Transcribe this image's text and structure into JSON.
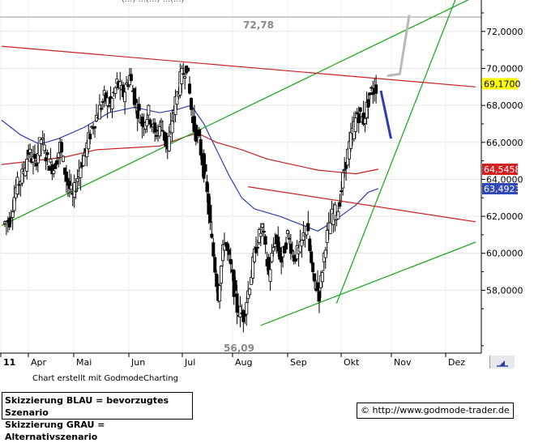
{
  "header": {
    "cut_text": "(...) ...(...) ...(...)"
  },
  "footer": {
    "credit": "Chart erstellt mit GodmodeCharting"
  },
  "legend_box": {
    "line1": "Skizzierung BLAU = bevorzugtes Szenario",
    "line2": "Skizzierung GRAU = Alternativszenario"
  },
  "url_box": {
    "icon": "copyright-icon",
    "text": "http://www.godmode-trader.de"
  },
  "chart_data": {
    "type": "candlestick",
    "title": "",
    "xlabel": "",
    "ylabel": "",
    "x_ticks": [
      "11",
      "Apr",
      "Mai",
      "Jun",
      "Jul",
      "Aug",
      "Sep",
      "Okt",
      "Nov",
      "Dez"
    ],
    "y_ticks": [
      "58,0000",
      "60,0000",
      "62,0000",
      "64,0000",
      "66,0000",
      "68,0000",
      "70,0000",
      "72,0000"
    ],
    "ylim": [
      54.6,
      73.7
    ],
    "grid": true,
    "annotations": {
      "high": "72,78",
      "low": "56,09"
    },
    "price_tags": [
      {
        "value": 69.17,
        "label": "69,1700",
        "bg": "#ffff00",
        "fg": "#000000"
      },
      {
        "value": 64.5458,
        "label": "64,5458",
        "bg": "#d42020",
        "fg": "#ffffff"
      },
      {
        "value": 63.4923,
        "label": "63,4923",
        "bg": "#3048b8",
        "fg": "#ffffff"
      }
    ],
    "colors": {
      "ma_red": "#c81e1e",
      "ma_blue": "#2a3eb0",
      "trend_green": "#22aa22",
      "resist_red": "#cc2222",
      "scenario_blue": "#2a3eb0",
      "scenario_grey": "#b8b8b8"
    },
    "ohlc_path": [
      [
        0.5,
        61.6
      ],
      [
        1.5,
        61.8
      ],
      [
        2.5,
        63.5
      ],
      [
        3.5,
        64.2
      ],
      [
        4.5,
        65.5
      ],
      [
        5.5,
        64.8
      ],
      [
        6.5,
        66.2
      ],
      [
        7.5,
        65.0
      ],
      [
        8.5,
        64.6
      ],
      [
        9.5,
        65.8
      ],
      [
        10.5,
        64.0
      ],
      [
        11.5,
        63.0
      ],
      [
        12.5,
        64.5
      ],
      [
        13.5,
        65.5
      ],
      [
        14.5,
        66.8
      ],
      [
        15.5,
        67.6
      ],
      [
        16.5,
        68.4
      ],
      [
        17.5,
        68.0
      ],
      [
        18.5,
        69.2
      ],
      [
        19.5,
        68.6
      ],
      [
        20.5,
        69.6
      ],
      [
        21.5,
        68.0
      ],
      [
        22.5,
        67.0
      ],
      [
        23.5,
        67.6
      ],
      [
        24.5,
        66.4
      ],
      [
        25.5,
        67.0
      ],
      [
        26.5,
        65.6
      ],
      [
        27.5,
        67.8
      ],
      [
        28.5,
        69.4
      ],
      [
        29.5,
        70.2
      ],
      [
        30.5,
        67.0
      ],
      [
        31.5,
        66.0
      ],
      [
        32.5,
        64.0
      ],
      [
        33.5,
        60.6
      ],
      [
        34.5,
        57.8
      ],
      [
        35.5,
        60.8
      ],
      [
        36.5,
        59.2
      ],
      [
        37.5,
        57.0
      ],
      [
        38.5,
        56.6
      ],
      [
        39.5,
        58.4
      ],
      [
        40.5,
        60.4
      ],
      [
        41.5,
        61.4
      ],
      [
        42.5,
        58.8
      ],
      [
        43.5,
        60.8
      ],
      [
        44.5,
        59.6
      ],
      [
        45.5,
        61.0
      ],
      [
        46.5,
        59.8
      ],
      [
        47.5,
        60.2
      ],
      [
        48.5,
        61.6
      ],
      [
        49.5,
        58.6
      ],
      [
        50.5,
        57.8
      ],
      [
        51.5,
        60.6
      ],
      [
        52.5,
        62.0
      ],
      [
        53.5,
        62.4
      ],
      [
        54.5,
        64.6
      ],
      [
        55.5,
        66.2
      ],
      [
        56.5,
        67.6
      ],
      [
        57.5,
        67.2
      ],
      [
        58.5,
        68.6
      ],
      [
        59.5,
        69.0
      ]
    ],
    "ma_blue_path": [
      [
        0,
        67.2
      ],
      [
        3,
        66.4
      ],
      [
        6,
        65.9
      ],
      [
        9,
        66.2
      ],
      [
        13,
        66.8
      ],
      [
        17,
        67.6
      ],
      [
        21,
        67.9
      ],
      [
        25,
        67.6
      ],
      [
        28,
        67.8
      ],
      [
        30,
        68.0
      ],
      [
        32,
        67.0
      ],
      [
        34,
        65.6
      ],
      [
        36,
        64.2
      ],
      [
        38,
        63.0
      ],
      [
        40,
        62.4
      ],
      [
        44,
        62.0
      ],
      [
        47,
        61.6
      ],
      [
        50,
        61.2
      ],
      [
        52,
        61.6
      ],
      [
        54,
        62.1
      ],
      [
        56,
        62.6
      ],
      [
        58,
        63.3
      ],
      [
        59.6,
        63.5
      ]
    ],
    "ma_red_path": [
      [
        0,
        64.8
      ],
      [
        5,
        65.0
      ],
      [
        10,
        65.2
      ],
      [
        15,
        65.6
      ],
      [
        20,
        65.7
      ],
      [
        25,
        65.8
      ],
      [
        29,
        66.3
      ],
      [
        31,
        66.5
      ],
      [
        34,
        66.0
      ],
      [
        38,
        65.6
      ],
      [
        42,
        65.1
      ],
      [
        46,
        64.8
      ],
      [
        50,
        64.5
      ],
      [
        53,
        64.4
      ],
      [
        56,
        64.3
      ],
      [
        59.6,
        64.55
      ]
    ],
    "trend_green_upper": [
      [
        0,
        61.5
      ],
      [
        75,
        73.9
      ]
    ],
    "trend_green_steep": [
      [
        53,
        57.3
      ],
      [
        72,
        73.9
      ]
    ],
    "trend_green_lower": [
      [
        41,
        56.1
      ],
      [
        75,
        60.6
      ]
    ],
    "resist_red_upper": [
      [
        0,
        71.2
      ],
      [
        75,
        69.0
      ]
    ],
    "resist_red_lower": [
      [
        39,
        63.6
      ],
      [
        75,
        61.7
      ]
    ],
    "scenario_blue_path": [
      [
        60,
        68.8
      ],
      [
        61.6,
        66.2
      ]
    ],
    "scenario_grey_path": [
      [
        61,
        69.6
      ],
      [
        63,
        69.7
      ],
      [
        64.5,
        72.9
      ]
    ]
  }
}
